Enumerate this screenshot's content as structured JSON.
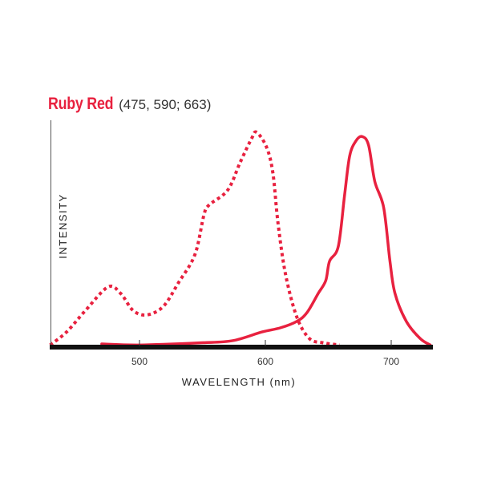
{
  "chart_data": {
    "type": "line",
    "title": "Ruby Red",
    "subtitle": "(475, 590; 663)",
    "xlabel": "WAVELENGTH (nm)",
    "ylabel": "INTENSITY",
    "xlim": [
      429,
      734
    ],
    "ylim": [
      0,
      1
    ],
    "xticks": [
      500,
      600,
      700
    ],
    "grid": false,
    "colors": {
      "series": "#e8213f",
      "axis": "#111111"
    },
    "series": [
      {
        "style": "dotted",
        "x": [
          429,
          442,
          457,
          475,
          485,
          495,
          506,
          519,
          531,
          544,
          551,
          555,
          570,
          580,
          589,
          593,
          601,
          606,
          610,
          616,
          625,
          635,
          646,
          659
        ],
        "y": [
          0.01,
          0.07,
          0.17,
          0.28,
          0.25,
          0.17,
          0.15,
          0.19,
          0.3,
          0.43,
          0.61,
          0.66,
          0.73,
          0.86,
          0.97,
          1.0,
          0.93,
          0.81,
          0.58,
          0.34,
          0.14,
          0.04,
          0.02,
          0.01
        ]
      },
      {
        "style": "solid",
        "x": [
          470,
          500,
          548,
          574,
          597,
          612,
          625,
          633,
          642,
          648,
          651,
          658,
          663,
          667,
          672,
          677,
          682,
          687,
          694,
          699,
          703,
          712,
          723,
          731
        ],
        "y": [
          0.015,
          0.01,
          0.02,
          0.03,
          0.07,
          0.09,
          0.12,
          0.16,
          0.25,
          0.31,
          0.4,
          0.47,
          0.71,
          0.89,
          0.96,
          0.98,
          0.94,
          0.77,
          0.65,
          0.4,
          0.25,
          0.12,
          0.04,
          0.01
        ]
      }
    ]
  }
}
